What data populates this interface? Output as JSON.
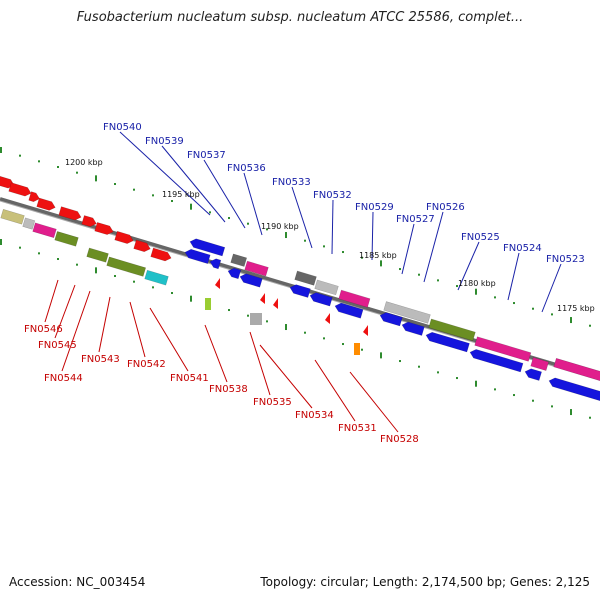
{
  "title": "Fusobacterium nucleatum subsp. nucleatum ATCC 25586, complet...",
  "footer": {
    "accession": "Accession: NC_003454",
    "summary": "Topology: circular; Length: 2,174,500 bp; Genes: 2,125"
  },
  "scale_labels": [
    "1200 kbp",
    "1195 kbp",
    "1190 kbp",
    "1185 kbp",
    "1180 kbp",
    "1175 kbp"
  ],
  "upper_gene_labels": [
    "FN0540",
    "FN0539",
    "FN0537",
    "FN0536",
    "FN0533",
    "FN0532",
    "FN0529",
    "FN0527",
    "FN0526",
    "FN0525",
    "FN0524",
    "FN0523"
  ],
  "lower_gene_labels": [
    "FN0546",
    "FN0545",
    "FN0544",
    "FN0543",
    "FN0542",
    "FN0541",
    "FN0538",
    "FN0535",
    "FN0534",
    "FN0531",
    "FN0528"
  ],
  "colors": {
    "upper_label": "#1a22a8",
    "lower_label": "#c40000",
    "backbone": "#777777",
    "tick": "#2e8b2e"
  }
}
